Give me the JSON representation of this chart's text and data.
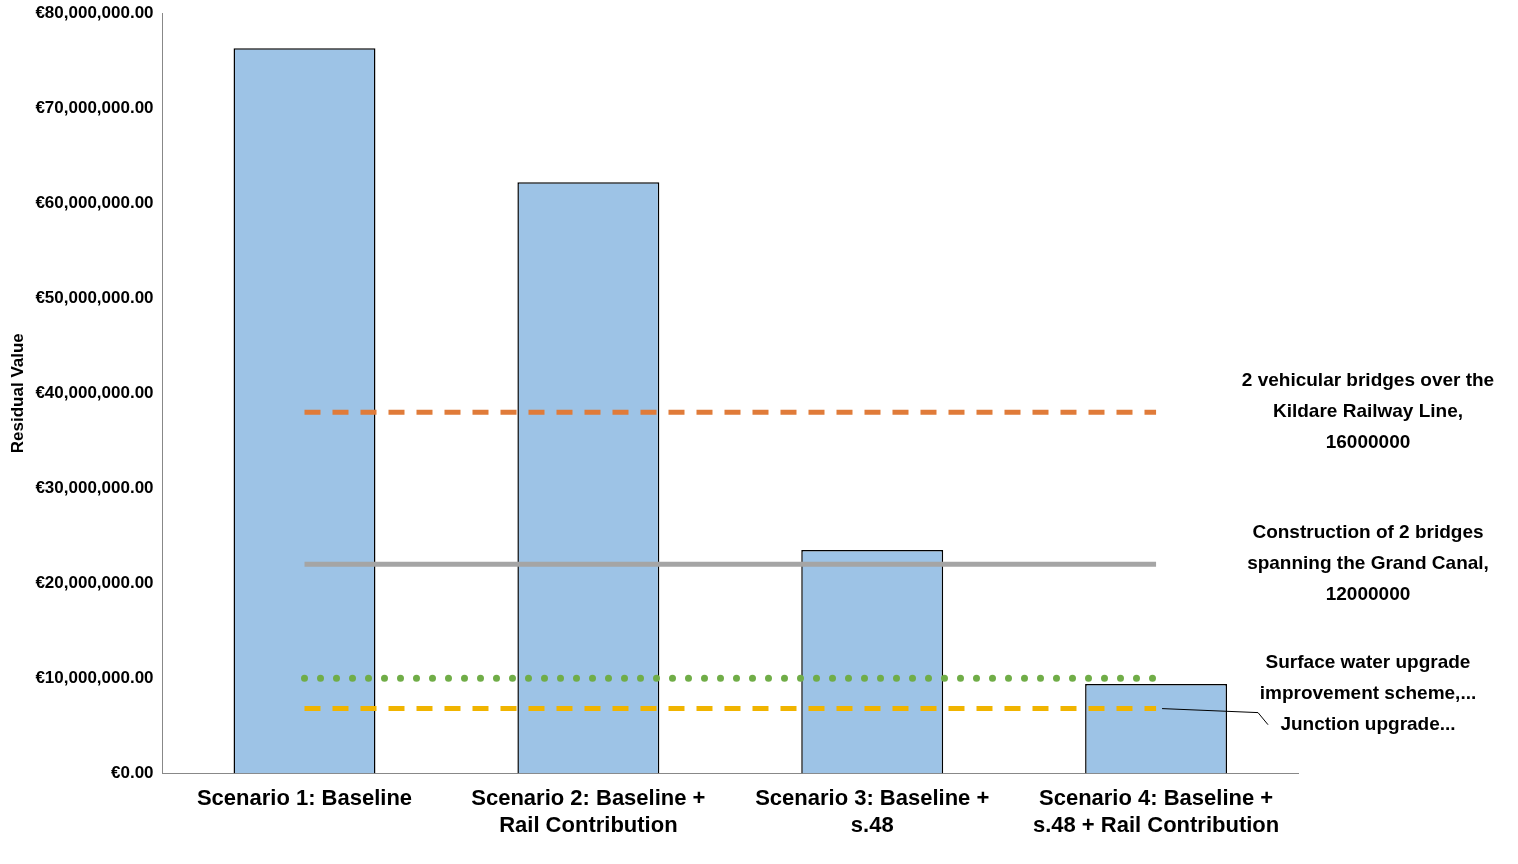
{
  "chart_data": {
    "type": "bar",
    "ylabel": "Residual Value",
    "categories": [
      "Scenario 1: Baseline",
      "Scenario 2: Baseline + Rail Contribution",
      "Scenario 3: Baseline + s.48",
      "Scenario 4: Baseline + s.48 + Rail Contribution"
    ],
    "ylim": [
      0,
      80000000
    ],
    "yticks": [
      {
        "value": 0,
        "label": "€0.00"
      },
      {
        "value": 10000000,
        "label": "€10,000,000.00"
      },
      {
        "value": 20000000,
        "label": "€20,000,000.00"
      },
      {
        "value": 30000000,
        "label": "€30,000,000.00"
      },
      {
        "value": 40000000,
        "label": "€40,000,000.00"
      },
      {
        "value": 50000000,
        "label": "€50,000,000.00"
      },
      {
        "value": 60000000,
        "label": "€60,000,000.00"
      },
      {
        "value": 70000000,
        "label": "€70,000,000.00"
      },
      {
        "value": 80000000,
        "label": "€80,000,000.00"
      }
    ],
    "grid": false,
    "legend": false,
    "marker": "none",
    "series": [
      {
        "color": "#9dc3e6",
        "values": [
          76300000,
          62200000,
          23500000,
          9400000
        ]
      },
      {
        "type": "line",
        "name": "2 vehicular bridges over the Kildare Railway Line, 16000000",
        "color": "#e07b39",
        "line_style": "dashed",
        "values": [
          38000000,
          38000000,
          38000000,
          38000000
        ]
      },
      {
        "type": "line",
        "name": "Construction of 2 bridges spanning the Grand Canal, 12000000",
        "color": "#a5a5a5",
        "line_style": "solid",
        "values": [
          22000000,
          22000000,
          22000000,
          22000000
        ]
      },
      {
        "type": "line",
        "name": "Surface water upgrade improvement scheme,...",
        "color": "#70ad47",
        "line_style": "dotted",
        "values": [
          10000000,
          10000000,
          10000000,
          10000000
        ]
      },
      {
        "type": "line",
        "name": "Junction upgrade...",
        "color": "#f0b400",
        "line_style": "dashed",
        "values": [
          6800000,
          6800000,
          6800000,
          6800000
        ]
      }
    ]
  }
}
